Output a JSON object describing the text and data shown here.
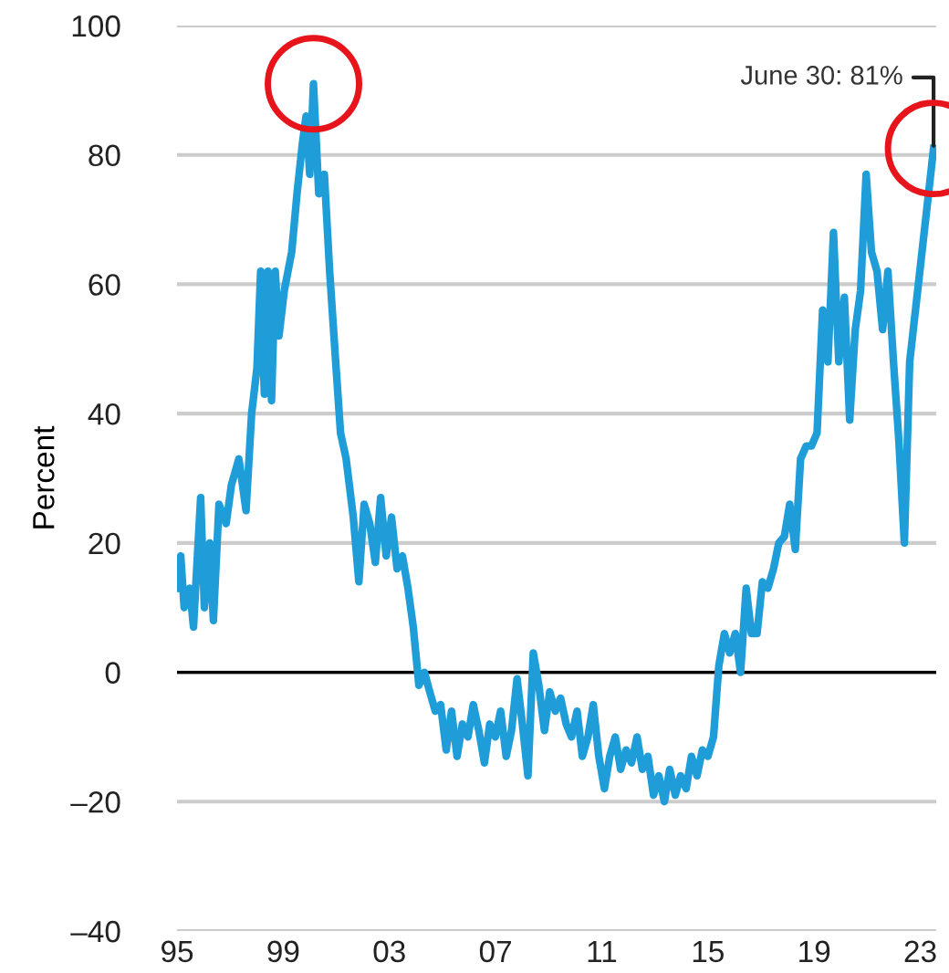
{
  "chart_data": {
    "type": "line",
    "ylabel": "Percent",
    "x": [
      1995.0,
      1995.14,
      1995.27,
      1995.48,
      1995.62,
      1995.89,
      1996.03,
      1996.23,
      1996.37,
      1996.58,
      1996.85,
      1997.05,
      1997.33,
      1997.6,
      1997.81,
      1998.01,
      1998.15,
      1998.29,
      1998.42,
      1998.56,
      1998.7,
      1998.84,
      1999.04,
      1999.32,
      1999.52,
      1999.73,
      1999.86,
      2000.0,
      2000.14,
      2000.34,
      2000.55,
      2000.75,
      2000.96,
      2001.16,
      2001.37,
      2001.64,
      2001.85,
      2002.05,
      2002.26,
      2002.47,
      2002.67,
      2002.88,
      2003.08,
      2003.29,
      2003.49,
      2003.7,
      2003.9,
      2004.11,
      2004.32,
      2004.52,
      2004.73,
      2004.93,
      2005.14,
      2005.34,
      2005.55,
      2005.75,
      2005.96,
      2006.16,
      2006.37,
      2006.58,
      2006.78,
      2006.99,
      2007.19,
      2007.4,
      2007.6,
      2007.81,
      2008.01,
      2008.22,
      2008.42,
      2008.63,
      2008.84,
      2009.04,
      2009.25,
      2009.45,
      2009.66,
      2009.86,
      2010.07,
      2010.27,
      2010.48,
      2010.68,
      2010.89,
      2011.1,
      2011.3,
      2011.51,
      2011.71,
      2011.92,
      2012.12,
      2012.33,
      2012.53,
      2012.74,
      2012.95,
      2013.15,
      2013.36,
      2013.56,
      2013.77,
      2013.97,
      2014.18,
      2014.38,
      2014.59,
      2014.79,
      2015.0,
      2015.21,
      2015.41,
      2015.62,
      2015.82,
      2016.03,
      2016.23,
      2016.44,
      2016.64,
      2016.85,
      2017.05,
      2017.26,
      2017.47,
      2017.67,
      2017.88,
      2018.08,
      2018.29,
      2018.49,
      2018.7,
      2018.9,
      2019.11,
      2019.32,
      2019.52,
      2019.73,
      2019.93,
      2020.14,
      2020.34,
      2020.55,
      2020.75,
      2020.96,
      2021.16,
      2021.37,
      2021.58,
      2021.78,
      2021.99,
      2022.19,
      2022.4,
      2022.6,
      2023.5
    ],
    "series": [
      {
        "color": "#1f9dd8",
        "values": [
          13,
          18,
          10,
          13,
          7,
          27,
          10,
          20,
          8,
          26,
          23,
          29,
          33,
          25,
          40,
          47,
          62,
          43,
          62,
          42,
          62,
          52,
          59,
          65,
          74,
          82,
          86,
          77,
          91,
          74,
          77,
          62,
          49,
          37,
          33,
          24,
          14,
          26,
          23,
          17,
          27,
          18,
          24,
          16,
          18,
          13,
          7,
          -2,
          0,
          -3,
          -6,
          -5,
          -12,
          -6,
          -13,
          -8,
          -10,
          -5,
          -9,
          -14,
          -8,
          -10,
          -6,
          -13,
          -9,
          -1,
          -8,
          -16,
          3,
          -2,
          -9,
          -3,
          -6,
          -4,
          -8,
          -10,
          -6,
          -13,
          -10,
          -5,
          -13,
          -18,
          -13,
          -10,
          -15,
          -12,
          -14,
          -10,
          -15,
          -13,
          -19,
          -16,
          -20,
          -15,
          -19,
          -16,
          -18,
          -13,
          -16,
          -12,
          -13,
          -10,
          1,
          6,
          3,
          6,
          0,
          13,
          6,
          6,
          14,
          13,
          16,
          20,
          21,
          26,
          19,
          33,
          35,
          35,
          37,
          56,
          48,
          68,
          48,
          58,
          39,
          53,
          59,
          77,
          65,
          62,
          53,
          62,
          48,
          36,
          20,
          48,
          81
        ]
      }
    ],
    "xlim": [
      1995,
      2023.6
    ],
    "xticks": [
      {
        "value": 1995,
        "label": "95"
      },
      {
        "value": 1999,
        "label": "99"
      },
      {
        "value": 2003,
        "label": "03"
      },
      {
        "value": 2007,
        "label": "07"
      },
      {
        "value": 2011,
        "label": "11"
      },
      {
        "value": 2015,
        "label": "15"
      },
      {
        "value": 2019,
        "label": "19"
      },
      {
        "value": 2023,
        "label": "23"
      }
    ],
    "ylim": [
      -40,
      100
    ],
    "yticks": [
      {
        "value": -40,
        "label": "–40"
      },
      {
        "value": -20,
        "label": "–20"
      },
      0,
      20,
      40,
      60,
      80,
      100
    ],
    "grid": "y",
    "ref_lines": [
      {
        "axis": "y",
        "value": 0,
        "color": "#000000"
      }
    ],
    "annotations": [
      {
        "text": "June 30: 81%",
        "x": 2023.5,
        "y": 81
      }
    ]
  }
}
